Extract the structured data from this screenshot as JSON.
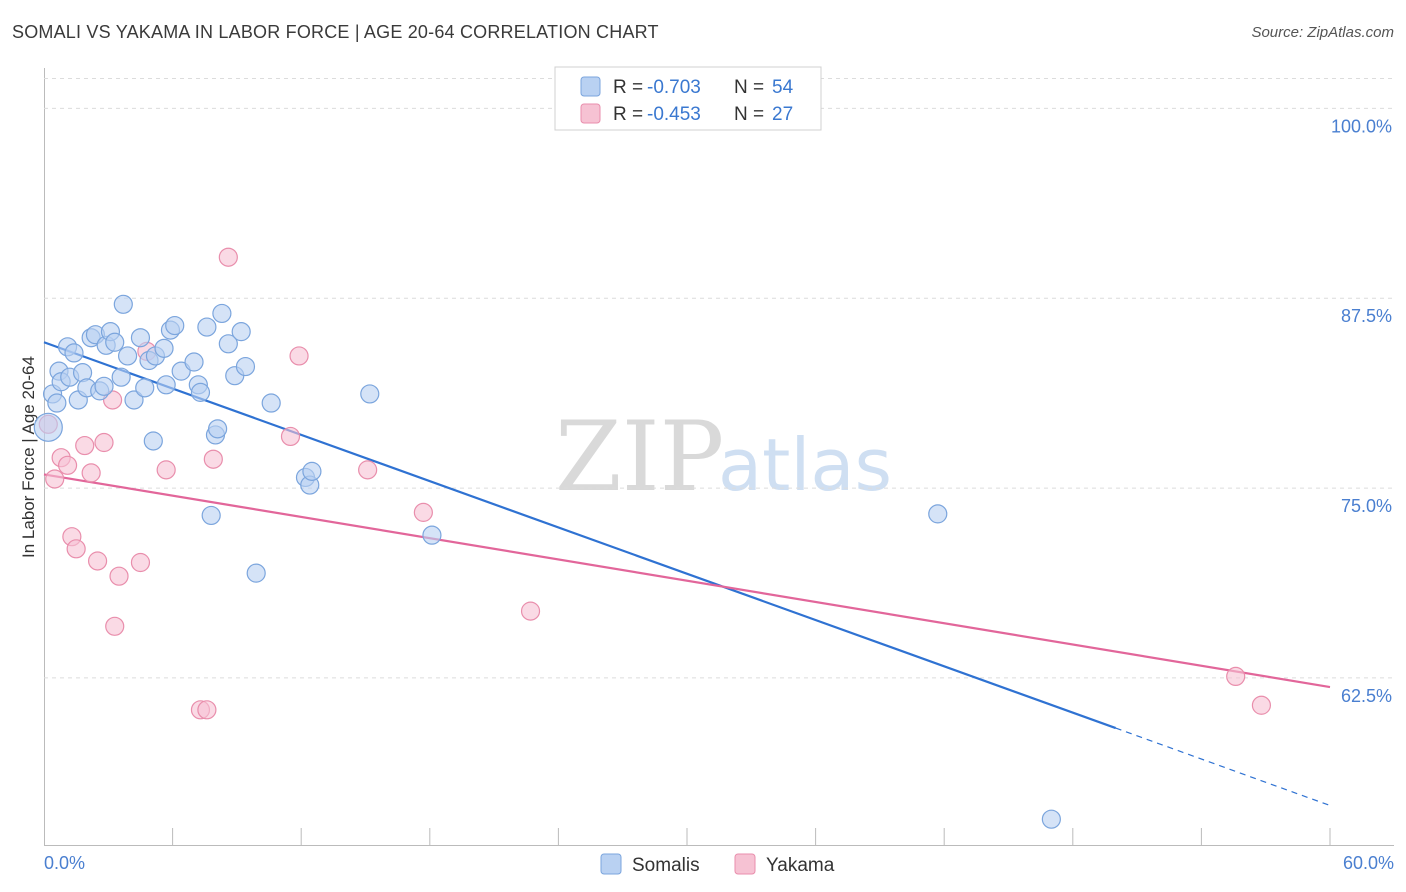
{
  "title": "SOMALI VS YAKAMA IN LABOR FORCE | AGE 20-64 CORRELATION CHART",
  "source": "Source: ZipAtlas.com",
  "watermark": {
    "left": "ZIP",
    "right": "atlas"
  },
  "colors": {
    "somali_fill": "#b9d1f2",
    "somali_stroke": "#7ba5dd",
    "somali_line": "#2f72d2",
    "yakama_fill": "#f6c2d3",
    "yakama_stroke": "#e98eac",
    "yakama_line": "#e2669a",
    "tick_label": "#4a7fd0",
    "grid": "#dcdcdc"
  },
  "legend": {
    "rows": [
      {
        "r_label": "R =",
        "r_value": "-0.703",
        "n_label": "N =",
        "n_value": "54"
      },
      {
        "r_label": "R =",
        "r_value": "-0.453",
        "n_label": "N =",
        "n_value": "27"
      }
    ]
  },
  "chart_data": {
    "type": "scatter",
    "title": "SOMALI VS YAKAMA IN LABOR FORCE | AGE 20-64 CORRELATION CHART",
    "xlabel": "",
    "ylabel": "In Labor Force | Age 20-64",
    "xlim": [
      0,
      60
    ],
    "ylim": [
      51.5,
      102
    ],
    "x_tick_labels": [
      "0.0%",
      "60.0%"
    ],
    "y_ticks": [
      62.5,
      75.0,
      87.5,
      100.0
    ],
    "y_tick_labels": [
      "62.5%",
      "75.0%",
      "87.5%",
      "100.0%"
    ],
    "series": [
      {
        "name": "Somalis",
        "r": -0.703,
        "n": 54,
        "trend": {
          "x0": 0.0,
          "y0": 84.6,
          "x1": 50.0,
          "y1": 59.2,
          "dashed_to_x": 60.0,
          "dashed_to_y": 54.1
        },
        "points": [
          [
            0.2,
            79.0,
            14
          ],
          [
            0.4,
            81.2,
            9
          ],
          [
            0.6,
            80.6,
            9
          ],
          [
            0.7,
            82.7,
            9
          ],
          [
            0.8,
            82.0,
            9
          ],
          [
            1.1,
            84.3,
            9
          ],
          [
            1.2,
            82.3,
            9
          ],
          [
            1.4,
            83.9,
            9
          ],
          [
            1.6,
            80.8,
            9
          ],
          [
            1.8,
            82.6,
            9
          ],
          [
            2.0,
            81.6,
            9
          ],
          [
            2.2,
            84.9,
            9
          ],
          [
            2.4,
            85.1,
            9
          ],
          [
            2.6,
            81.4,
            9
          ],
          [
            2.8,
            81.7,
            9
          ],
          [
            2.9,
            84.4,
            9
          ],
          [
            3.1,
            85.3,
            9
          ],
          [
            3.3,
            84.6,
            9
          ],
          [
            3.6,
            82.3,
            9
          ],
          [
            3.7,
            87.1,
            9
          ],
          [
            3.9,
            83.7,
            9
          ],
          [
            4.2,
            80.8,
            9
          ],
          [
            4.5,
            84.9,
            9
          ],
          [
            4.7,
            81.6,
            9
          ],
          [
            4.9,
            83.4,
            9
          ],
          [
            5.1,
            78.1,
            9
          ],
          [
            5.2,
            83.7,
            9
          ],
          [
            5.6,
            84.2,
            9
          ],
          [
            5.7,
            81.8,
            9
          ],
          [
            5.9,
            85.4,
            9
          ],
          [
            6.1,
            85.7,
            9
          ],
          [
            6.4,
            82.7,
            9
          ],
          [
            7.0,
            83.3,
            9
          ],
          [
            7.2,
            81.8,
            9
          ],
          [
            7.3,
            81.3,
            9
          ],
          [
            7.6,
            85.6,
            9
          ],
          [
            7.8,
            73.2,
            9
          ],
          [
            8.0,
            78.5,
            9
          ],
          [
            8.1,
            78.9,
            9
          ],
          [
            8.3,
            86.5,
            9
          ],
          [
            8.6,
            84.5,
            9
          ],
          [
            8.9,
            82.4,
            9
          ],
          [
            9.2,
            85.3,
            9
          ],
          [
            9.4,
            83.0,
            9
          ],
          [
            9.9,
            69.4,
            9
          ],
          [
            10.6,
            80.6,
            9
          ],
          [
            12.2,
            75.7,
            9
          ],
          [
            12.4,
            75.2,
            9
          ],
          [
            12.5,
            76.1,
            9
          ],
          [
            15.2,
            81.2,
            9
          ],
          [
            18.1,
            71.9,
            9
          ],
          [
            41.7,
            73.3,
            9
          ],
          [
            47.0,
            53.2,
            9
          ],
          [
            47.2,
            52.8,
            0
          ]
        ]
      },
      {
        "name": "Yakama",
        "r": -0.453,
        "n": 27,
        "trend": {
          "x0": 0.0,
          "y0": 75.9,
          "x1": 60.0,
          "y1": 61.9
        },
        "points": [
          [
            0.2,
            79.2,
            9
          ],
          [
            0.5,
            75.6,
            9
          ],
          [
            0.8,
            77.0,
            9
          ],
          [
            1.1,
            76.5,
            9
          ],
          [
            1.3,
            71.8,
            9
          ],
          [
            1.5,
            71.0,
            9
          ],
          [
            1.9,
            77.8,
            9
          ],
          [
            2.2,
            76.0,
            9
          ],
          [
            2.5,
            70.2,
            9
          ],
          [
            2.8,
            78.0,
            9
          ],
          [
            3.2,
            80.8,
            9
          ],
          [
            3.3,
            65.9,
            9
          ],
          [
            3.5,
            69.2,
            9
          ],
          [
            4.5,
            70.1,
            9
          ],
          [
            4.8,
            84.0,
            9
          ],
          [
            5.7,
            76.2,
            9
          ],
          [
            7.3,
            60.4,
            9
          ],
          [
            7.6,
            60.4,
            9
          ],
          [
            7.9,
            76.9,
            9
          ],
          [
            8.6,
            90.2,
            9
          ],
          [
            11.5,
            78.4,
            9
          ],
          [
            11.9,
            83.7,
            9
          ],
          [
            15.1,
            76.2,
            9
          ],
          [
            17.7,
            73.4,
            9
          ],
          [
            22.7,
            66.9,
            9
          ],
          [
            55.6,
            62.6,
            9
          ],
          [
            56.8,
            60.7,
            9
          ]
        ]
      }
    ],
    "legend_position": "top-center",
    "bottom_legend": [
      "Somalis",
      "Yakama"
    ]
  }
}
